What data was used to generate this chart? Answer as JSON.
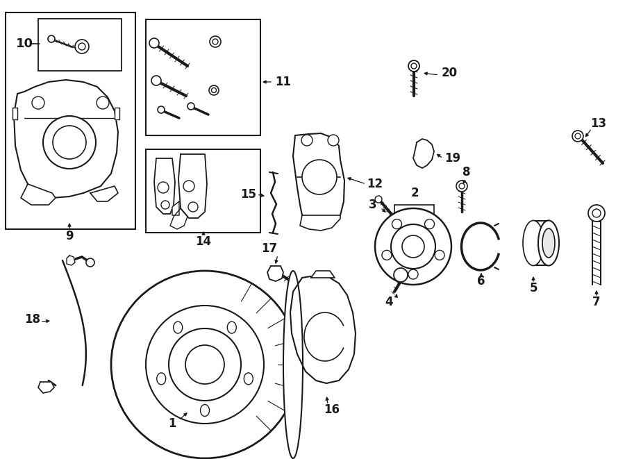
{
  "bg_color": "#ffffff",
  "line_color": "#1a1a1a",
  "fig_width": 9.0,
  "fig_height": 6.61,
  "dpi": 100,
  "label_fontsize": 11,
  "label_fontweight": "bold"
}
